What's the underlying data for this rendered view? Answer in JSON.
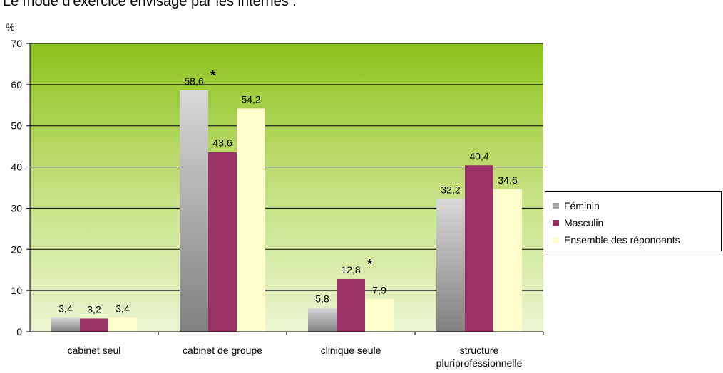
{
  "chart_data": {
    "type": "bar",
    "title": "Le mode d'exercice envisagé par les internes :",
    "ylabel": "%",
    "ylim": [
      0,
      70
    ],
    "yticks": [
      "0",
      "10",
      "20",
      "30",
      "40",
      "50",
      "60",
      "70"
    ],
    "categories": [
      "cabinet seul",
      "cabinet de groupe",
      "clinique seule",
      "structure pluriprofessionnelle"
    ],
    "series": [
      {
        "name": "Féminin",
        "color": "#a6a6a6",
        "values": [
          3.4,
          58.6,
          5.8,
          32.2
        ],
        "labels": [
          "3,4",
          "58,6",
          "5,8",
          "32,2"
        ]
      },
      {
        "name": "Masculin",
        "color": "#993366",
        "values": [
          3.2,
          43.6,
          12.8,
          40.4
        ],
        "labels": [
          "3,2",
          "43,6",
          "12,8",
          "40,4"
        ]
      },
      {
        "name": "Ensemble des répondants",
        "color": "#ffffcc",
        "values": [
          3.4,
          54.2,
          7.9,
          34.6
        ],
        "labels": [
          "3,4",
          "54,2",
          "7,9",
          "34,6"
        ]
      }
    ],
    "annotations": [
      {
        "series": 0,
        "category": 1,
        "text": "*"
      },
      {
        "series": 1,
        "category": 2,
        "text": "*"
      }
    ],
    "grid": true,
    "legend_position": "right"
  }
}
